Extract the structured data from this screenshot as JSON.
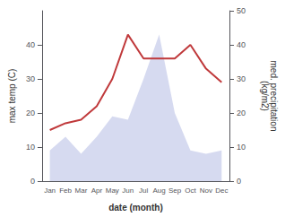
{
  "chart_data": {
    "type": "line",
    "categories": [
      "Jan",
      "Feb",
      "Mar",
      "Apr",
      "May",
      "Jun",
      "Jul",
      "Aug",
      "Sep",
      "Oct",
      "Nov",
      "Dec"
    ],
    "series": [
      {
        "type": "line",
        "color": "#c0393b",
        "axis": "y",
        "values": [
          15,
          17,
          18,
          22,
          30,
          43,
          36,
          36,
          36,
          40,
          33,
          29
        ]
      },
      {
        "type": "area",
        "color": "#c5cae9",
        "axis": "y2",
        "values": [
          9,
          13,
          8,
          13,
          19,
          18,
          30,
          43,
          20,
          9,
          8,
          9
        ]
      }
    ],
    "xlabel": "date (month)",
    "ylabel": "max temp (C)",
    "y2label": "med. precipitation\n(kg/m2)",
    "ylim": [
      0,
      50
    ],
    "yticks": [
      0,
      10,
      20,
      30,
      40
    ],
    "y2lim": [
      0,
      50
    ],
    "y2ticks": [
      0,
      10,
      20,
      30,
      40,
      50
    ],
    "grid": false
  }
}
